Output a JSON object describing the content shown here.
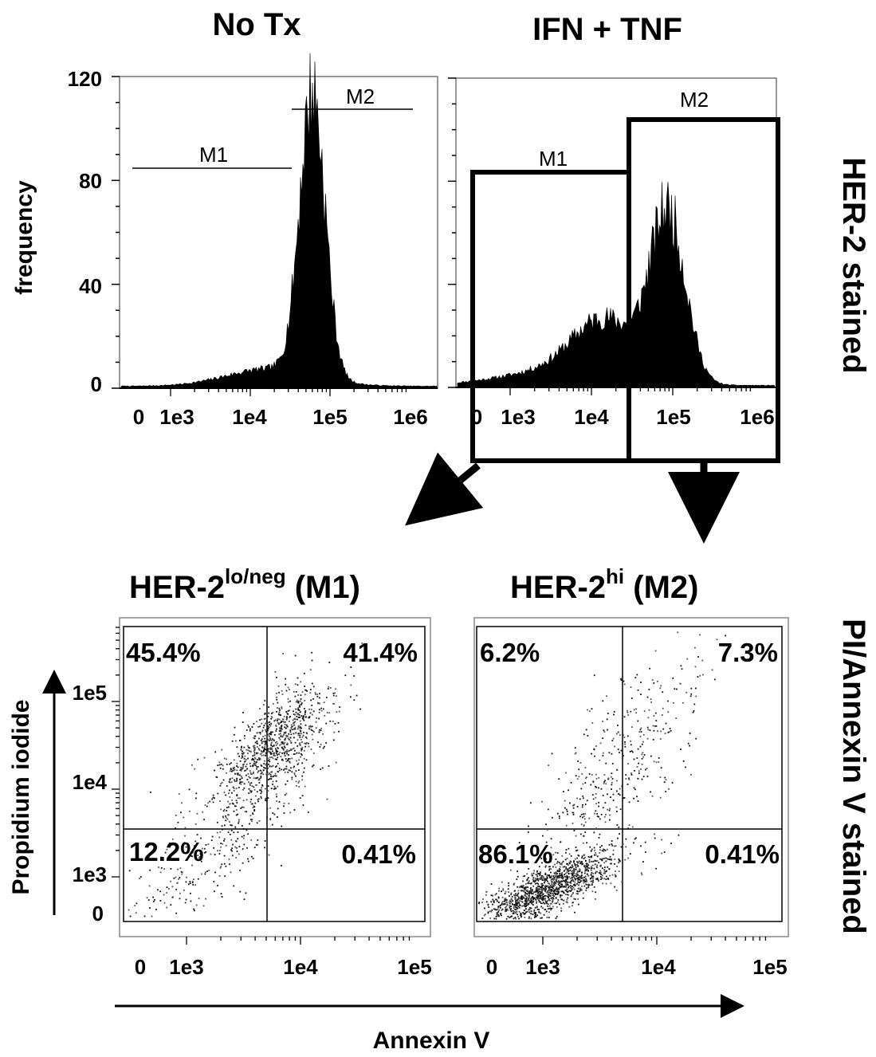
{
  "side_labels": {
    "histogram_row": "HER-2 stained",
    "scatter_row": "PI/Annexin V stained"
  },
  "chart_data": [
    {
      "type": "histogram",
      "title": "No Tx",
      "ylabel": "frequency",
      "xlabel": "",
      "x_scale": "log",
      "x_ticks": [
        "0",
        "1e3",
        "1e4",
        "1e5",
        "1e6"
      ],
      "y_ticks": [
        "0",
        "40",
        "80",
        "120"
      ],
      "ylim": [
        0,
        120
      ],
      "gates": [
        {
          "name": "M1",
          "x_from": "0",
          "x_to": "3e4"
        },
        {
          "name": "M2",
          "x_from": "3e4",
          "x_to": "1e6"
        }
      ],
      "peak": {
        "x": "5.5e4",
        "frequency": 118
      }
    },
    {
      "type": "histogram",
      "title": "IFN + TNF",
      "ylabel": "",
      "xlabel": "",
      "x_scale": "log",
      "x_ticks": [
        "0",
        "1e3",
        "1e4",
        "1e5",
        "1e6"
      ],
      "ylim": [
        0,
        120
      ],
      "gates": [
        {
          "name": "M1",
          "x_from": "0",
          "x_to": "2.5e4"
        },
        {
          "name": "M2",
          "x_from": "2.5e4",
          "x_to": "1e6"
        }
      ],
      "peaks": [
        {
          "x": "1.5e4",
          "frequency": 25
        },
        {
          "x": "9e4",
          "frequency": 70
        }
      ]
    },
    {
      "type": "scatter",
      "title_base": "HER-2",
      "title_sup": "lo/neg",
      "title_suffix": " (M1)",
      "xlabel": "Annexin V",
      "ylabel": "Propidium iodide",
      "x_ticks": [
        "0",
        "1e3",
        "1e4",
        "1e5"
      ],
      "y_ticks": [
        "0",
        "1e3",
        "1e4",
        "1e5"
      ],
      "quadrants": {
        "upper_left": "45.4%",
        "upper_right": "41.4%",
        "lower_left": "12.2%",
        "lower_right": "0.41%"
      }
    },
    {
      "type": "scatter",
      "title_base": "HER-2",
      "title_sup": "hi",
      "title_suffix": " (M2)",
      "xlabel": "Annexin V",
      "ylabel": "Propidium iodide",
      "x_ticks": [
        "0",
        "1e3",
        "1e4",
        "1e5"
      ],
      "y_ticks": [
        "0",
        "1e3",
        "1e4",
        "1e5"
      ],
      "quadrants": {
        "upper_left": "6.2%",
        "upper_right": "7.3%",
        "lower_left": "86.1%",
        "lower_right": "0.41%"
      }
    }
  ]
}
